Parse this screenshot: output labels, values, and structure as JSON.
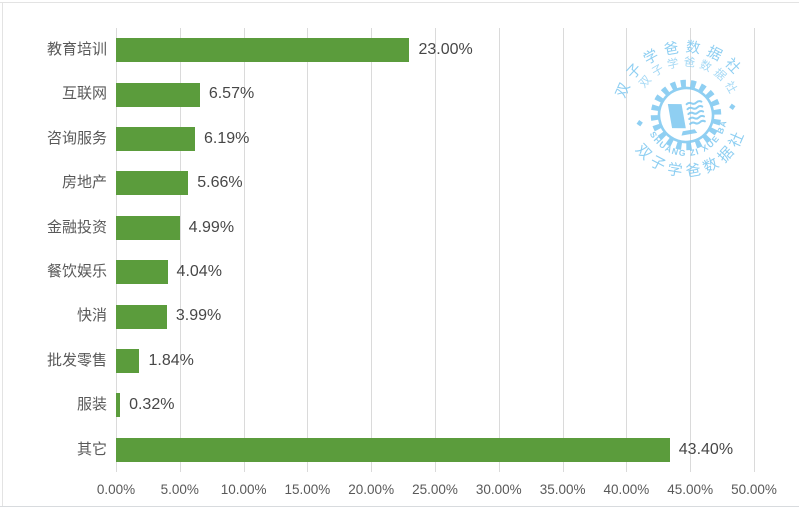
{
  "chart_data": {
    "type": "bar",
    "orientation": "horizontal",
    "title": "",
    "categories": [
      "教育培训",
      "互联网",
      "咨询服务",
      "房地产",
      "金融投资",
      "餐饮娱乐",
      "快消",
      "批发零售",
      "服装",
      "其它"
    ],
    "values": [
      23.0,
      6.57,
      6.19,
      5.66,
      4.99,
      4.04,
      3.99,
      1.84,
      0.32,
      43.4
    ],
    "value_labels": [
      "23.00%",
      "6.57%",
      "6.19%",
      "5.66%",
      "4.99%",
      "4.04%",
      "3.99%",
      "1.84%",
      "0.32%",
      "43.40%"
    ],
    "x_ticks": [
      "0.00%",
      "5.00%",
      "10.00%",
      "15.00%",
      "20.00%",
      "25.00%",
      "30.00%",
      "35.00%",
      "40.00%",
      "45.00%",
      "50.00%"
    ],
    "xlabel": "",
    "ylabel": "",
    "xlim": [
      0,
      50
    ],
    "grid": true,
    "legend": false,
    "bar_color": "#5b9c3c",
    "gridline_color": "#dadada",
    "tick_color": "#595959",
    "category_color": "#595959",
    "value_label_color": "#474747"
  },
  "watermark": {
    "arc_top_text": "双子学爸数据社",
    "arc_top_inner_text": "双子学爸数据社",
    "pinyin_arc_text": "SHUANG ZI XUE BA",
    "arc_bottom_text": "双子学爸数据社",
    "color": "#7cc7f0",
    "icons": [
      "gear-icon",
      "book-icon",
      "diamond-separator-icon"
    ]
  }
}
